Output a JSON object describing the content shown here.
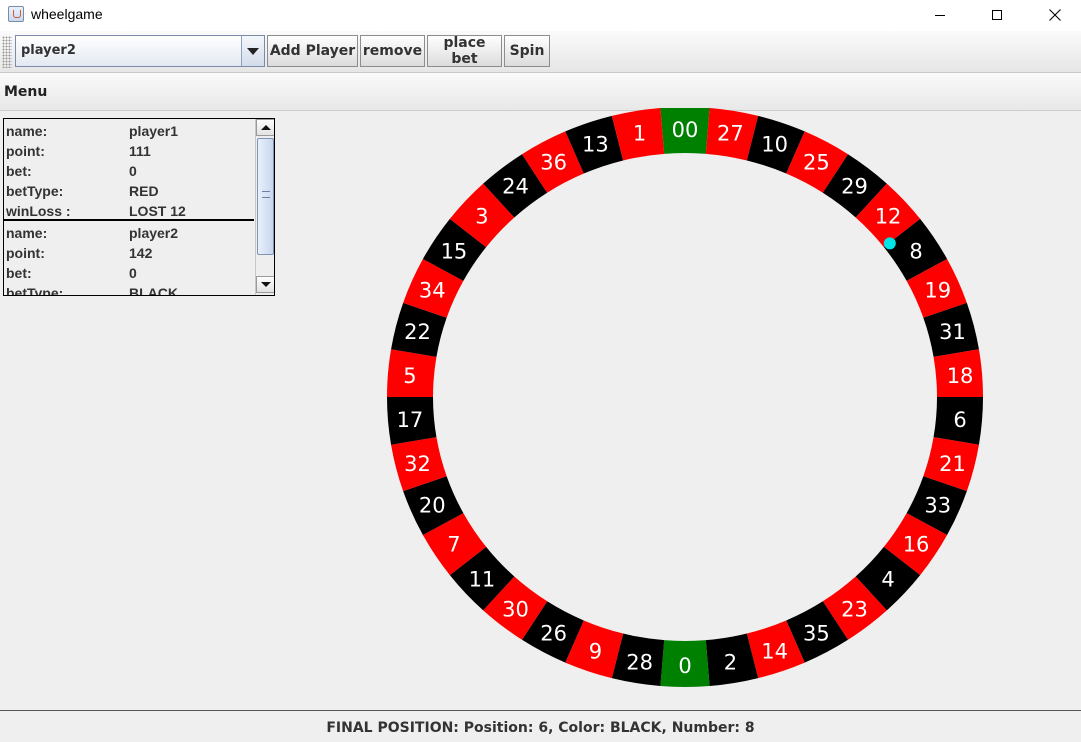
{
  "window": {
    "title": "wheelgame",
    "icon": "java-cup-icon"
  },
  "toolbar": {
    "selected_player": "player2",
    "add_player_label": "Add Player",
    "remove_label": "remove",
    "place_bet_label": "place bet",
    "spin_label": "Spin"
  },
  "menubar": {
    "menu_label": "Menu"
  },
  "players": [
    {
      "name_key": "name:",
      "name": "player1",
      "point_key": "point:",
      "point": "111",
      "bet_key": "bet:",
      "bet": "0",
      "betType_key": "betType:",
      "betType": "RED",
      "winLoss_key": "winLoss :",
      "winLoss": "LOST 12"
    },
    {
      "name_key": "name:",
      "name": "player2",
      "point_key": "point:",
      "point": "142",
      "bet_key": "bet:",
      "bet": "0",
      "betType_key": "betType:",
      "betType": "BLACK",
      "winLoss_key": "",
      "winLoss": ""
    }
  ],
  "wheel": {
    "numbers": [
      "00",
      "27",
      "10",
      "25",
      "29",
      "12",
      "8",
      "19",
      "31",
      "18",
      "6",
      "21",
      "33",
      "16",
      "4",
      "23",
      "35",
      "14",
      "2",
      "0",
      "28",
      "9",
      "26",
      "30",
      "11",
      "7",
      "20",
      "32",
      "17",
      "5",
      "22",
      "34",
      "15",
      "3",
      "24",
      "36",
      "13",
      "1"
    ],
    "colors": [
      "green",
      "red",
      "black",
      "red",
      "black",
      "red",
      "black",
      "red",
      "black",
      "red",
      "black",
      "red",
      "black",
      "red",
      "black",
      "red",
      "black",
      "red",
      "black",
      "green",
      "black",
      "red",
      "black",
      "red",
      "black",
      "red",
      "black",
      "red",
      "black",
      "red",
      "black",
      "red",
      "black",
      "red",
      "black",
      "red",
      "black",
      "red"
    ],
    "color_map": {
      "red": "#ff0000",
      "black": "#000000",
      "green": "#008000"
    },
    "ball_color": "#00e5e5",
    "ball_number": "8"
  },
  "status": {
    "text": "FINAL POSITION: Position: 6, Color: BLACK, Number: 8"
  }
}
